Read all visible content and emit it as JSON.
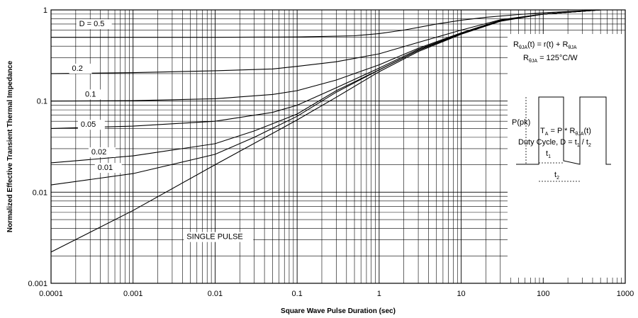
{
  "chart_data": {
    "type": "line",
    "xscale": "log",
    "yscale": "log",
    "xlim": [
      0.0001,
      1000
    ],
    "ylim": [
      0.001,
      1
    ],
    "xlabel": "Square Wave Pulse Duration (sec)",
    "ylabel": "Normalized Effective Transient Thermal Impedance",
    "xticks": [
      "0.0001",
      "0.001",
      "0.01",
      "0.1",
      "1",
      "10",
      "100",
      "1000"
    ],
    "yticks": [
      "0.001",
      "0.01",
      "0.1",
      "1"
    ],
    "grid": true,
    "series": [
      {
        "name": "D = 0.5",
        "x": [
          0.0001,
          0.001,
          0.01,
          0.1,
          0.5,
          1,
          2,
          5,
          10,
          20,
          50,
          100,
          200,
          500
        ],
        "y": [
          0.5,
          0.5,
          0.5,
          0.505,
          0.52,
          0.55,
          0.6,
          0.7,
          0.77,
          0.83,
          0.89,
          0.93,
          0.96,
          1.0
        ]
      },
      {
        "name": "0.2",
        "x": [
          0.0001,
          0.001,
          0.01,
          0.05,
          0.1,
          0.3,
          1,
          3,
          10,
          30,
          100,
          500
        ],
        "y": [
          0.2,
          0.205,
          0.215,
          0.225,
          0.24,
          0.27,
          0.33,
          0.44,
          0.6,
          0.78,
          0.9,
          1.0
        ]
      },
      {
        "name": "0.1",
        "x": [
          0.0001,
          0.001,
          0.01,
          0.05,
          0.1,
          0.3,
          1,
          3,
          10,
          30,
          100,
          500
        ],
        "y": [
          0.1,
          0.101,
          0.106,
          0.118,
          0.13,
          0.17,
          0.25,
          0.38,
          0.56,
          0.77,
          0.9,
          1.0
        ]
      },
      {
        "name": "0.05",
        "x": [
          0.0001,
          0.001,
          0.01,
          0.05,
          0.1,
          0.3,
          1,
          3,
          10,
          30,
          100,
          500
        ],
        "y": [
          0.05,
          0.053,
          0.06,
          0.075,
          0.09,
          0.14,
          0.23,
          0.37,
          0.55,
          0.76,
          0.9,
          1.0
        ]
      },
      {
        "name": "0.02",
        "x": [
          0.0001,
          0.001,
          0.01,
          0.03,
          0.1,
          0.3,
          1,
          3,
          10,
          30,
          100,
          500
        ],
        "y": [
          0.021,
          0.025,
          0.034,
          0.047,
          0.072,
          0.13,
          0.22,
          0.36,
          0.55,
          0.76,
          0.9,
          1.0
        ]
      },
      {
        "name": "0.01",
        "x": [
          0.0001,
          0.001,
          0.01,
          0.03,
          0.1,
          0.3,
          1,
          3,
          10,
          30,
          100,
          500
        ],
        "y": [
          0.012,
          0.016,
          0.026,
          0.04,
          0.068,
          0.125,
          0.22,
          0.36,
          0.55,
          0.76,
          0.9,
          1.0
        ]
      },
      {
        "name": "SINGLE PULSE",
        "x": [
          0.0001,
          0.001,
          0.01,
          0.1,
          0.3,
          1,
          3,
          10,
          30,
          100,
          500
        ],
        "y": [
          0.0022,
          0.0063,
          0.02,
          0.062,
          0.11,
          0.21,
          0.35,
          0.54,
          0.75,
          0.9,
          1.0
        ]
      }
    ],
    "annotations": {
      "formula": "R_θJA(t) = r(t) + R_θJA",
      "formula2": "R_θJA = 125°C/W",
      "ppk": "P(pk)",
      "ta": "T_A = P * R_θJA(t)",
      "duty": "Duty Cycle, D = t1 / t2",
      "t1": "t1",
      "t2": "t2"
    }
  }
}
